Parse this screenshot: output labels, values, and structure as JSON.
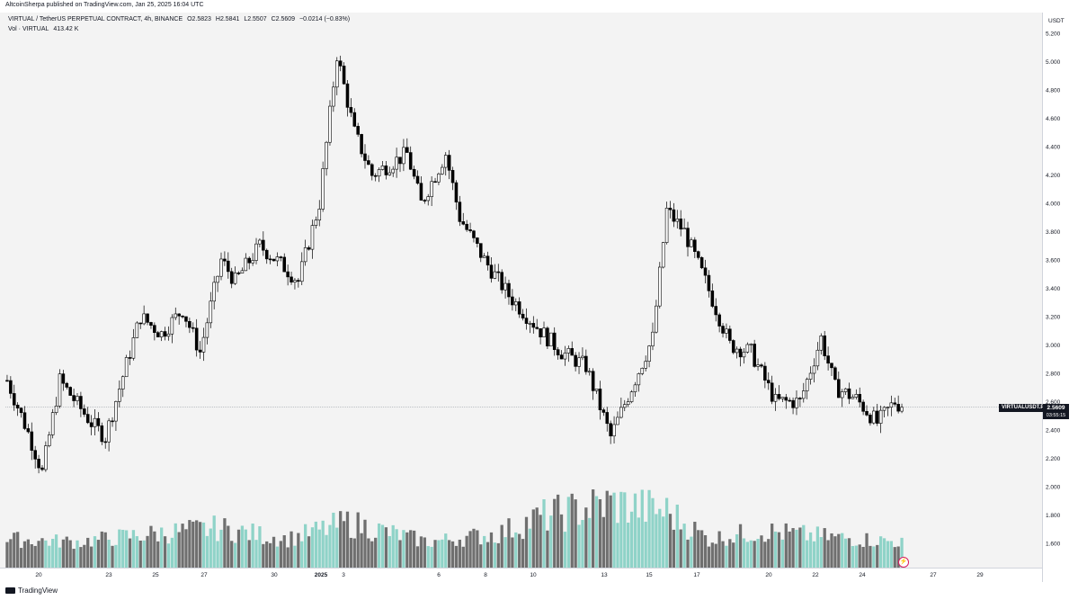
{
  "header": {
    "published": "AltcoinSherpa published on TradingView.com, Jan 25, 2025 16:04 UTC"
  },
  "legend": {
    "symbol": "VIRTUAL / TetherUS PERPETUAL CONTRACT, 4h, BINANCE",
    "open": "O2.5823",
    "high": "H2.5841",
    "low": "L2.5507",
    "close": "C2.5609",
    "change": "−0.0214 (−0.83%)",
    "vol_label": "Vol · VIRTUAL",
    "vol_value": "413.42 K"
  },
  "price_axis": {
    "unit": "USDT"
  },
  "price_tag": {
    "symbol": "VIRTUALUSDT.P",
    "last": "2.5609",
    "countdown": "03:55:15"
  },
  "footer": {
    "brand": "TradingView"
  },
  "colors": {
    "up": "#ffffff",
    "down": "#000000",
    "vol_up": "#8fd3c8",
    "vol_down": "#6f6f6f",
    "background": "#f3f3f3",
    "last_price_line": "#9aa0a6"
  },
  "chart_data": {
    "type": "candlestick",
    "interval": "4h",
    "ylim": [
      1.45,
      5.25
    ],
    "y_ticks": [
      "5.200",
      "5.000",
      "4.800",
      "4.600",
      "4.400",
      "4.200",
      "4.000",
      "3.800",
      "3.600",
      "3.400",
      "3.200",
      "3.000",
      "2.800",
      "2.600",
      "2.400",
      "2.200",
      "2.000",
      "1.800",
      "1.600"
    ],
    "x_ticks": [
      "20",
      "23",
      "25",
      "27",
      "30",
      "2025",
      "3",
      "6",
      "8",
      "10",
      "13",
      "15",
      "17",
      "20",
      "22",
      "24",
      "27",
      "29"
    ],
    "last_price": 2.5609,
    "anchors": [
      {
        "bar": 0,
        "price": 2.75
      },
      {
        "bar": 6,
        "price": 2.38
      },
      {
        "bar": 10,
        "price": 2.1
      },
      {
        "bar": 15,
        "price": 2.75
      },
      {
        "bar": 24,
        "price": 2.45
      },
      {
        "bar": 28,
        "price": 2.35
      },
      {
        "bar": 33,
        "price": 2.78
      },
      {
        "bar": 38,
        "price": 3.2
      },
      {
        "bar": 44,
        "price": 3.08
      },
      {
        "bar": 50,
        "price": 3.25
      },
      {
        "bar": 55,
        "price": 2.95
      },
      {
        "bar": 61,
        "price": 3.6
      },
      {
        "bar": 65,
        "price": 3.45
      },
      {
        "bar": 72,
        "price": 3.7
      },
      {
        "bar": 79,
        "price": 3.55
      },
      {
        "bar": 83,
        "price": 3.45
      },
      {
        "bar": 89,
        "price": 4.0
      },
      {
        "bar": 94,
        "price": 5.05
      },
      {
        "bar": 99,
        "price": 4.5
      },
      {
        "bar": 104,
        "price": 4.2
      },
      {
        "bar": 114,
        "price": 4.35
      },
      {
        "bar": 118,
        "price": 4.0
      },
      {
        "bar": 125,
        "price": 4.35
      },
      {
        "bar": 129,
        "price": 3.9
      },
      {
        "bar": 136,
        "price": 3.6
      },
      {
        "bar": 143,
        "price": 3.35
      },
      {
        "bar": 152,
        "price": 3.1
      },
      {
        "bar": 158,
        "price": 2.95
      },
      {
        "bar": 165,
        "price": 2.85
      },
      {
        "bar": 172,
        "price": 2.35
      },
      {
        "bar": 178,
        "price": 2.7
      },
      {
        "bar": 184,
        "price": 3.05
      },
      {
        "bar": 188,
        "price": 3.95
      },
      {
        "bar": 193,
        "price": 3.8
      },
      {
        "bar": 199,
        "price": 3.45
      },
      {
        "bar": 206,
        "price": 3.0
      },
      {
        "bar": 212,
        "price": 2.95
      },
      {
        "bar": 219,
        "price": 2.6
      },
      {
        "bar": 226,
        "price": 2.6
      },
      {
        "bar": 232,
        "price": 3.05
      },
      {
        "bar": 236,
        "price": 2.7
      },
      {
        "bar": 242,
        "price": 2.62
      },
      {
        "bar": 248,
        "price": 2.45
      },
      {
        "bar": 253,
        "price": 2.6
      },
      {
        "bar": 255,
        "price": 2.5609
      }
    ],
    "volume_profile": [
      {
        "bar": 0,
        "v": 0.35
      },
      {
        "bar": 20,
        "v": 0.3
      },
      {
        "bar": 37,
        "v": 0.42
      },
      {
        "bar": 60,
        "v": 0.55
      },
      {
        "bar": 80,
        "v": 0.35
      },
      {
        "bar": 97,
        "v": 0.65
      },
      {
        "bar": 120,
        "v": 0.3
      },
      {
        "bar": 140,
        "v": 0.45
      },
      {
        "bar": 152,
        "v": 0.75
      },
      {
        "bar": 172,
        "v": 1.0
      },
      {
        "bar": 188,
        "v": 0.85
      },
      {
        "bar": 200,
        "v": 0.35
      },
      {
        "bar": 215,
        "v": 0.5
      },
      {
        "bar": 232,
        "v": 0.4
      },
      {
        "bar": 255,
        "v": 0.3
      }
    ]
  }
}
